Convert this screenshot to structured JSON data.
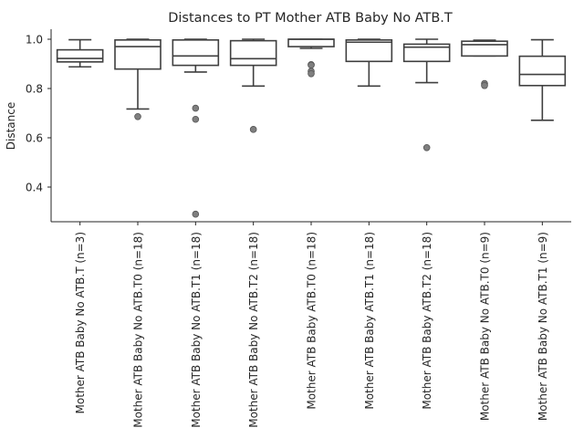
{
  "chart_data": {
    "type": "box",
    "title": "Distances to PT Mother ATB Baby No ATB.T",
    "xlabel": "",
    "ylabel": "Distance",
    "ylim": [
      0.25,
      1.04
    ],
    "yticks": [
      0.4,
      0.6,
      0.8,
      1.0
    ],
    "ytick_labels": [
      "0.4",
      "0.6",
      "0.8",
      "1.0"
    ],
    "grid": false,
    "categories": [
      "Mother ATB Baby No ATB.T (n=3)",
      "Mother ATB Baby No ATB.T0 (n=18)",
      "Mother ATB Baby No ATB.T1 (n=18)",
      "Mother ATB Baby No ATB.T2 (n=18)",
      "Mother ATB Baby ATB.T0 (n=18)",
      "Mother ATB Baby ATB.T1 (n=18)",
      "Mother ATB Baby ATB.T2 (n=18)",
      "Mother ATB Baby No ATB.T0 (n=9)",
      "Mother ATB Baby No ATB.T1 (n=9)"
    ],
    "boxes": [
      {
        "whislo": 0.888,
        "q1": 0.908,
        "med": 0.922,
        "q3": 0.957,
        "whishi": 0.998,
        "fliers": []
      },
      {
        "whislo": 0.717,
        "q1": 0.879,
        "med": 0.97,
        "q3": 0.997,
        "whishi": 1.0,
        "fliers": [
          0.686
        ]
      },
      {
        "whislo": 0.867,
        "q1": 0.894,
        "med": 0.932,
        "q3": 0.997,
        "whishi": 1.0,
        "fliers": [
          0.72,
          0.675,
          0.29
        ]
      },
      {
        "whislo": 0.81,
        "q1": 0.894,
        "med": 0.921,
        "q3": 0.994,
        "whishi": 1.0,
        "fliers": [
          0.634
        ]
      },
      {
        "whislo": 0.963,
        "q1": 0.97,
        "med": 1.0,
        "q3": 1.0,
        "whishi": 1.0,
        "fliers": [
          0.897,
          0.895,
          0.87,
          0.86
        ]
      },
      {
        "whislo": 0.81,
        "q1": 0.91,
        "med": 0.988,
        "q3": 0.997,
        "whishi": 1.0,
        "fliers": []
      },
      {
        "whislo": 0.824,
        "q1": 0.91,
        "med": 0.968,
        "q3": 0.98,
        "whishi": 1.0,
        "fliers": [
          0.56
        ]
      },
      {
        "whislo": 0.932,
        "q1": 0.932,
        "med": 0.978,
        "q3": 0.992,
        "whishi": 0.996,
        "fliers": [
          0.82,
          0.812
        ]
      },
      {
        "whislo": 0.671,
        "q1": 0.812,
        "med": 0.857,
        "q3": 0.931,
        "whishi": 0.998,
        "fliers": []
      }
    ]
  }
}
